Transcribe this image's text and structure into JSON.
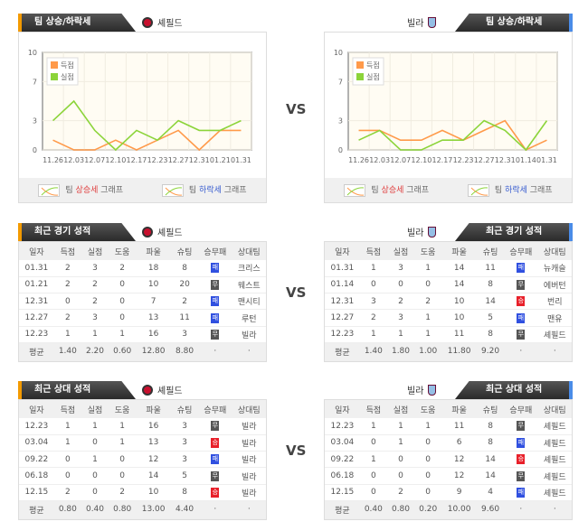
{
  "vs": "VS",
  "colors": {
    "scored": "#ff9a4a",
    "conceded": "#8cd43a",
    "win": "#e8202a",
    "draw": "#555555",
    "loss": "#3050e0"
  },
  "trend": {
    "tab": "팀 상승/하락세",
    "legend_footer": {
      "prefix": "팀",
      "up": "상승세",
      "down": "하락세",
      "suffix": "그래프"
    },
    "left": {
      "team": "셰필드",
      "icon": "sheffield-crest"
    },
    "right": {
      "team": "빌라",
      "icon": "villa-crest"
    }
  },
  "chart_data": [
    {
      "type": "line",
      "team": "셰필드",
      "categories": [
        "11.26",
        "12.03",
        "12.07",
        "12.10",
        "12.17",
        "12.23",
        "12.27",
        "12.31",
        "01.21",
        "01.31"
      ],
      "yticks": [
        "0",
        "3",
        "7",
        "10"
      ],
      "ylim": [
        0,
        10
      ],
      "legend": "top-left",
      "series": [
        {
          "name": "득점",
          "values": [
            1,
            0,
            0,
            1,
            0,
            1,
            2,
            0,
            2,
            2
          ]
        },
        {
          "name": "실점",
          "values": [
            3,
            5,
            2,
            0,
            2,
            1,
            3,
            2,
            2,
            3
          ]
        }
      ]
    },
    {
      "type": "line",
      "team": "빌라",
      "categories": [
        "11.26",
        "12.03",
        "12.07",
        "12.10",
        "12.17",
        "12.23",
        "12.27",
        "12.31",
        "01.14",
        "01.31"
      ],
      "yticks": [
        "0",
        "3",
        "7",
        "10"
      ],
      "ylim": [
        0,
        10
      ],
      "legend": "top-left",
      "series": [
        {
          "name": "득점",
          "values": [
            2,
            2,
            1,
            1,
            2,
            1,
            2,
            3,
            0,
            1
          ]
        },
        {
          "name": "실점",
          "values": [
            1,
            2,
            0,
            0,
            1,
            1,
            3,
            2,
            0,
            3
          ]
        }
      ]
    }
  ],
  "columns": [
    "일자",
    "득점",
    "실점",
    "도움",
    "파울",
    "슈팅",
    "승무패",
    "상대팀"
  ],
  "recent": {
    "tab": "최근 경기 성적",
    "left": {
      "team": "셰필드",
      "rows": [
        [
          "01.31",
          "2",
          "3",
          "2",
          "18",
          "8",
          "패",
          "크리스"
        ],
        [
          "01.21",
          "2",
          "2",
          "0",
          "10",
          "20",
          "무",
          "웨스트"
        ],
        [
          "12.31",
          "0",
          "2",
          "0",
          "7",
          "2",
          "패",
          "맨시티"
        ],
        [
          "12.27",
          "2",
          "3",
          "0",
          "13",
          "11",
          "패",
          "루턴"
        ],
        [
          "12.23",
          "1",
          "1",
          "1",
          "16",
          "3",
          "무",
          "빌라"
        ]
      ],
      "avg": [
        "평균",
        "1.40",
        "2.20",
        "0.60",
        "12.80",
        "8.80",
        "·",
        "·"
      ]
    },
    "right": {
      "team": "빌라",
      "rows": [
        [
          "01.31",
          "1",
          "3",
          "1",
          "14",
          "11",
          "패",
          "뉴캐슬"
        ],
        [
          "01.14",
          "0",
          "0",
          "0",
          "14",
          "8",
          "무",
          "에버턴"
        ],
        [
          "12.31",
          "3",
          "2",
          "2",
          "10",
          "14",
          "승",
          "번리"
        ],
        [
          "12.27",
          "2",
          "3",
          "1",
          "10",
          "5",
          "패",
          "맨유"
        ],
        [
          "12.23",
          "1",
          "1",
          "1",
          "11",
          "8",
          "무",
          "셰필드"
        ]
      ],
      "avg": [
        "평균",
        "1.40",
        "1.80",
        "1.00",
        "11.80",
        "9.20",
        "·",
        "·"
      ]
    }
  },
  "h2h": {
    "tab": "최근 상대 성적",
    "left": {
      "team": "셰필드",
      "rows": [
        [
          "12.23",
          "1",
          "1",
          "1",
          "16",
          "3",
          "무",
          "빌라"
        ],
        [
          "03.04",
          "1",
          "0",
          "1",
          "13",
          "3",
          "승",
          "빌라"
        ],
        [
          "09.22",
          "0",
          "1",
          "0",
          "12",
          "3",
          "패",
          "빌라"
        ],
        [
          "06.18",
          "0",
          "0",
          "0",
          "14",
          "5",
          "무",
          "빌라"
        ],
        [
          "12.15",
          "2",
          "0",
          "2",
          "10",
          "8",
          "승",
          "빌라"
        ]
      ],
      "avg": [
        "평균",
        "0.80",
        "0.40",
        "0.80",
        "13.00",
        "4.40",
        "·",
        "·"
      ]
    },
    "right": {
      "team": "빌라",
      "rows": [
        [
          "12.23",
          "1",
          "1",
          "1",
          "11",
          "8",
          "무",
          "셰필드"
        ],
        [
          "03.04",
          "0",
          "1",
          "0",
          "6",
          "8",
          "패",
          "셰필드"
        ],
        [
          "09.22",
          "1",
          "0",
          "0",
          "12",
          "14",
          "승",
          "셰필드"
        ],
        [
          "06.18",
          "0",
          "0",
          "0",
          "12",
          "14",
          "무",
          "셰필드"
        ],
        [
          "12.15",
          "0",
          "2",
          "0",
          "9",
          "4",
          "패",
          "셰필드"
        ]
      ],
      "avg": [
        "평균",
        "0.40",
        "0.80",
        "0.20",
        "10.00",
        "9.60",
        "·",
        "·"
      ]
    }
  }
}
